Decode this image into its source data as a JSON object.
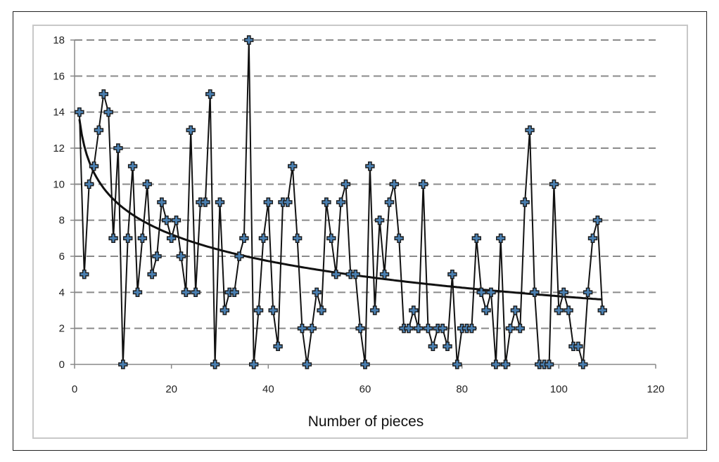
{
  "chart_data": {
    "type": "line",
    "title": "",
    "xlabel": "Number of pieces",
    "ylabel": "",
    "xlim": [
      0,
      120
    ],
    "ylim": [
      0,
      18
    ],
    "xticks": [
      0,
      20,
      40,
      60,
      80,
      100,
      120
    ],
    "yticks": [
      0,
      2,
      4,
      6,
      8,
      10,
      12,
      14,
      16,
      18
    ],
    "grid": "horizontal dashed",
    "legend": "none",
    "colors": {
      "line": "#111111",
      "marker_fill": "#4a7fb0",
      "grid": "#8a8a8a",
      "trend": "#111111"
    },
    "series": [
      {
        "x": [
          1,
          2,
          3,
          4,
          5,
          6,
          7,
          8,
          9,
          10,
          11,
          12,
          13,
          14,
          15,
          16,
          17,
          18,
          19,
          20,
          21,
          22,
          23,
          24,
          25,
          26,
          27,
          28,
          29,
          30,
          31,
          32,
          33,
          34,
          35,
          36,
          37,
          38,
          39,
          40,
          41,
          42,
          43,
          44,
          45,
          46,
          47,
          48,
          49,
          50,
          51,
          52,
          53,
          54,
          55,
          56,
          57,
          58,
          59,
          60,
          61,
          62,
          63,
          64,
          65,
          66,
          67,
          68,
          69,
          70,
          71,
          72,
          73,
          74,
          75,
          76,
          77,
          78,
          79,
          80,
          81,
          82,
          83,
          84,
          85,
          86,
          87,
          88,
          89,
          90,
          91,
          92,
          93,
          94,
          95,
          96,
          97,
          98,
          99,
          100,
          101,
          102,
          103,
          104,
          105,
          106,
          107,
          108,
          109
        ],
        "values": [
          14,
          5,
          10,
          11,
          13,
          15,
          14,
          7,
          12,
          0,
          7,
          11,
          4,
          7,
          10,
          5,
          6,
          9,
          8,
          7,
          8,
          6,
          4,
          13,
          4,
          9,
          9,
          15,
          0,
          9,
          3,
          4,
          4,
          6,
          7,
          18,
          0,
          3,
          7,
          9,
          3,
          1,
          9,
          9,
          11,
          7,
          2,
          0,
          2,
          4,
          3,
          9,
          7,
          5,
          9,
          10,
          5,
          5,
          2,
          0,
          11,
          3,
          8,
          5,
          9,
          10,
          7,
          2,
          2,
          3,
          2,
          10,
          2,
          1,
          2,
          2,
          1,
          5,
          0,
          2,
          2,
          2,
          7,
          4,
          3,
          4,
          0,
          7,
          0,
          2,
          3,
          2,
          9,
          13,
          4,
          0,
          0,
          0,
          10,
          3,
          4,
          3,
          1,
          1,
          0,
          4,
          7,
          8,
          3
        ]
      }
    ],
    "trendline": {
      "type": "logarithmic",
      "from_x": 1,
      "to_x": 109,
      "start_value": 13.6,
      "end_value": 3.6
    }
  }
}
